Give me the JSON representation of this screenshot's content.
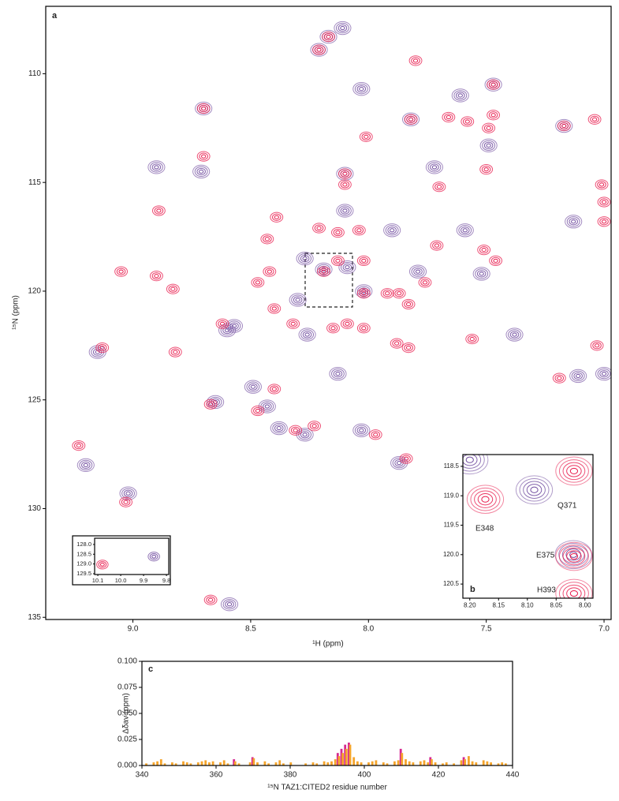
{
  "chart_data": [
    {
      "type": "scatter",
      "panel_label": "a",
      "xlabel": "¹H (ppm)",
      "ylabel": "¹⁵N (ppm)",
      "xlim": [
        9.37,
        6.97
      ],
      "ylim": [
        135.1,
        106.9
      ],
      "xticks": [
        {
          "value": 9,
          "label": "9.0"
        },
        8.5,
        {
          "value": 8,
          "label": "8.0"
        },
        7.5,
        {
          "value": 7,
          "label": "7.0"
        }
      ],
      "yticks": [
        110,
        115,
        120,
        125,
        130,
        135
      ],
      "series": [
        {
          "color": "#6f4a9e",
          "x": [
            8.11,
            8.17,
            8.21,
            8.03,
            7.47,
            7.61,
            8.7,
            7.17,
            7.49,
            7.82,
            8.71,
            8.9,
            8.1,
            7.72,
            8.1,
            7.9,
            7.59,
            8.27,
            8.19,
            8.09,
            7.79,
            7.52,
            8.3,
            8.57,
            8.26,
            7.38,
            8.13,
            7.11,
            8.49,
            8.38,
            8.27,
            8.03,
            7.87,
            9.2,
            9.02,
            8.59,
            9.15,
            7.13,
            8.02,
            8.43,
            8.65,
            7.0,
            8.6
          ],
          "values": [
            107.9,
            108.3,
            108.9,
            110.7,
            110.5,
            111.0,
            111.6,
            112.4,
            113.3,
            112.1,
            114.5,
            114.3,
            114.6,
            114.3,
            116.3,
            117.2,
            117.2,
            118.5,
            119.0,
            118.9,
            119.1,
            119.2,
            120.4,
            121.6,
            122.0,
            122.0,
            123.8,
            123.9,
            124.4,
            126.3,
            126.6,
            126.4,
            127.9,
            128.0,
            129.3,
            134.4,
            122.8,
            116.8,
            120.0,
            125.3,
            125.1,
            123.8,
            121.8
          ]
        },
        {
          "color": "#e8194b",
          "x": [
            8.17,
            8.21,
            7.8,
            7.47,
            8.7,
            7.47,
            7.82,
            7.66,
            7.58,
            8.01,
            7.49,
            7.17,
            7.04,
            8.7,
            7.5,
            8.1,
            7.7,
            7.01,
            8.1,
            8.89,
            8.39,
            8.04,
            8.21,
            8.13,
            8.43,
            7.51,
            7.71,
            7.46,
            8.13,
            8.02,
            8.42,
            8.19,
            9.05,
            8.9,
            8.83,
            8.47,
            7.76,
            8.02,
            7.92,
            7.87,
            7.83,
            8.62,
            8.32,
            8.02,
            8.15,
            8.09,
            8.4,
            7.88,
            9.13,
            7.83,
            7.56,
            7.03,
            8.82,
            7.19,
            8.4,
            8.67,
            8.47,
            8.31,
            8.23,
            7.97,
            9.23,
            7.84,
            9.03,
            8.67,
            7.0,
            7.0
          ],
          "values": [
            108.3,
            108.9,
            109.4,
            110.5,
            111.6,
            111.9,
            112.1,
            112.0,
            112.2,
            112.9,
            112.5,
            112.4,
            112.1,
            113.8,
            114.4,
            114.6,
            115.2,
            115.1,
            115.1,
            116.3,
            116.6,
            117.2,
            117.1,
            117.3,
            117.6,
            118.1,
            117.9,
            118.6,
            118.6,
            118.6,
            119.1,
            119.1,
            119.1,
            119.3,
            119.9,
            119.6,
            119.6,
            120.1,
            120.1,
            120.1,
            120.6,
            121.5,
            121.5,
            121.7,
            121.7,
            121.5,
            120.8,
            122.4,
            122.6,
            122.6,
            122.2,
            122.5,
            122.8,
            124.0,
            124.5,
            125.2,
            125.5,
            126.4,
            126.2,
            126.6,
            127.1,
            127.7,
            129.7,
            134.2,
            116.8,
            115.9
          ]
        }
      ]
    },
    {
      "type": "scatter",
      "xlim": [
        10.114,
        9.79
      ],
      "ylim": [
        129.54,
        127.68
      ],
      "xticks": [
        10.1,
        {
          "value": 10,
          "label": "10.0"
        },
        9.9,
        9.8
      ],
      "yticks": [
        {
          "value": 128,
          "label": "128.0"
        },
        128.5,
        {
          "value": 129,
          "label": "129.0"
        },
        129.5
      ],
      "series": [
        {
          "color": "#6f4a9e",
          "x": [
            9.855
          ],
          "values": [
            128.62
          ]
        },
        {
          "color": "#e8194b",
          "x": [
            10.08
          ],
          "values": [
            129.03
          ]
        }
      ]
    },
    {
      "type": "scatter",
      "panel_label": "b",
      "xlim": [
        8.212,
        7.986
      ],
      "ylim": [
        120.74,
        118.3
      ],
      "xticks": [
        {
          "value": 8.2,
          "label": "8.20"
        },
        8.15,
        {
          "value": 8.1,
          "label": "8.10"
        },
        8.05,
        {
          "value": 8,
          "label": "8.00"
        }
      ],
      "yticks": [
        118.5,
        {
          "value": 119,
          "label": "119.0"
        },
        119.5,
        {
          "value": 120,
          "label": "120.0"
        },
        120.5
      ],
      "annotations": [
        "E348",
        "Q371",
        "E375",
        "H393"
      ],
      "series": [
        {
          "color": "#6f4a9e",
          "x": [
            8.2,
            8.088,
            8.02
          ],
          "values": [
            118.39,
            118.9,
            120.0
          ]
        },
        {
          "color": "#e8194b",
          "x": [
            8.173,
            8.019,
            8.019,
            8.019
          ],
          "values": [
            119.06,
            118.58,
            120.03,
            120.66
          ]
        }
      ]
    },
    {
      "type": "bar",
      "panel_label": "c",
      "xlabel": "¹⁵N TAZ1:CITED2 residue number",
      "ylabel": "Δδav (ppm)",
      "xlim": [
        340,
        440
      ],
      "ylim": [
        0,
        0.1
      ],
      "xticks": [
        340,
        360,
        380,
        400,
        420,
        440
      ],
      "yticks": [
        {
          "value": 0,
          "label": "0.000"
        },
        {
          "value": 0.025,
          "label": "0.025"
        },
        {
          "value": 0.05,
          "label": "0.050"
        },
        {
          "value": 0.075,
          "label": "0.075"
        },
        {
          "value": 0.1,
          "label": "0.100"
        }
      ],
      "x": [
        341,
        343,
        344,
        345,
        346,
        348,
        349,
        351,
        352,
        353,
        355,
        356,
        357,
        358,
        359,
        361,
        362,
        363,
        365,
        366,
        369,
        370,
        371,
        373,
        374,
        376,
        377,
        378,
        380,
        384,
        386,
        387,
        389,
        390,
        391,
        392,
        393,
        394,
        395,
        396,
        397,
        398,
        399,
        401,
        402,
        403,
        405,
        406,
        408,
        409,
        410,
        411,
        412,
        413,
        415,
        416,
        417,
        418,
        419,
        421,
        422,
        424,
        426,
        427,
        428,
        429,
        430,
        432,
        433,
        434,
        436,
        437,
        438
      ],
      "series": [
        {
          "color": "#d6288f",
          "values": [
            null,
            null,
            null,
            null,
            null,
            null,
            null,
            null,
            null,
            null,
            null,
            null,
            null,
            null,
            null,
            null,
            null,
            null,
            0.006,
            null,
            null,
            0.008,
            null,
            null,
            null,
            null,
            null,
            null,
            null,
            null,
            null,
            null,
            null,
            null,
            null,
            null,
            0.012,
            0.016,
            0.02,
            0.022,
            null,
            null,
            null,
            null,
            null,
            null,
            null,
            null,
            null,
            null,
            0.016,
            null,
            null,
            null,
            null,
            null,
            null,
            0.008,
            null,
            null,
            null,
            null,
            null,
            0.008,
            null,
            null,
            null,
            null,
            null,
            null,
            null,
            null,
            null
          ]
        },
        {
          "color": "#f5a42a",
          "values": [
            0.002,
            0.003,
            0.004,
            0.006,
            0.002,
            0.003,
            0.002,
            0.004,
            0.003,
            0.002,
            0.003,
            0.004,
            0.005,
            0.003,
            0.004,
            0.003,
            0.005,
            0.002,
            0.004,
            0.002,
            0.003,
            0.007,
            0.003,
            0.004,
            0.002,
            0.003,
            0.005,
            0.002,
            0.003,
            0.002,
            0.003,
            0.002,
            0.004,
            0.003,
            0.004,
            0.006,
            0.009,
            0.012,
            0.016,
            0.02,
            0.008,
            0.004,
            0.003,
            0.003,
            0.004,
            0.005,
            0.003,
            0.002,
            0.004,
            0.005,
            0.012,
            0.006,
            0.004,
            0.003,
            0.004,
            0.005,
            0.003,
            0.006,
            0.003,
            0.002,
            0.003,
            0.002,
            0.005,
            0.006,
            0.009,
            0.004,
            0.003,
            0.005,
            0.004,
            0.003,
            0.002,
            0.003,
            0.002
          ]
        }
      ]
    }
  ]
}
